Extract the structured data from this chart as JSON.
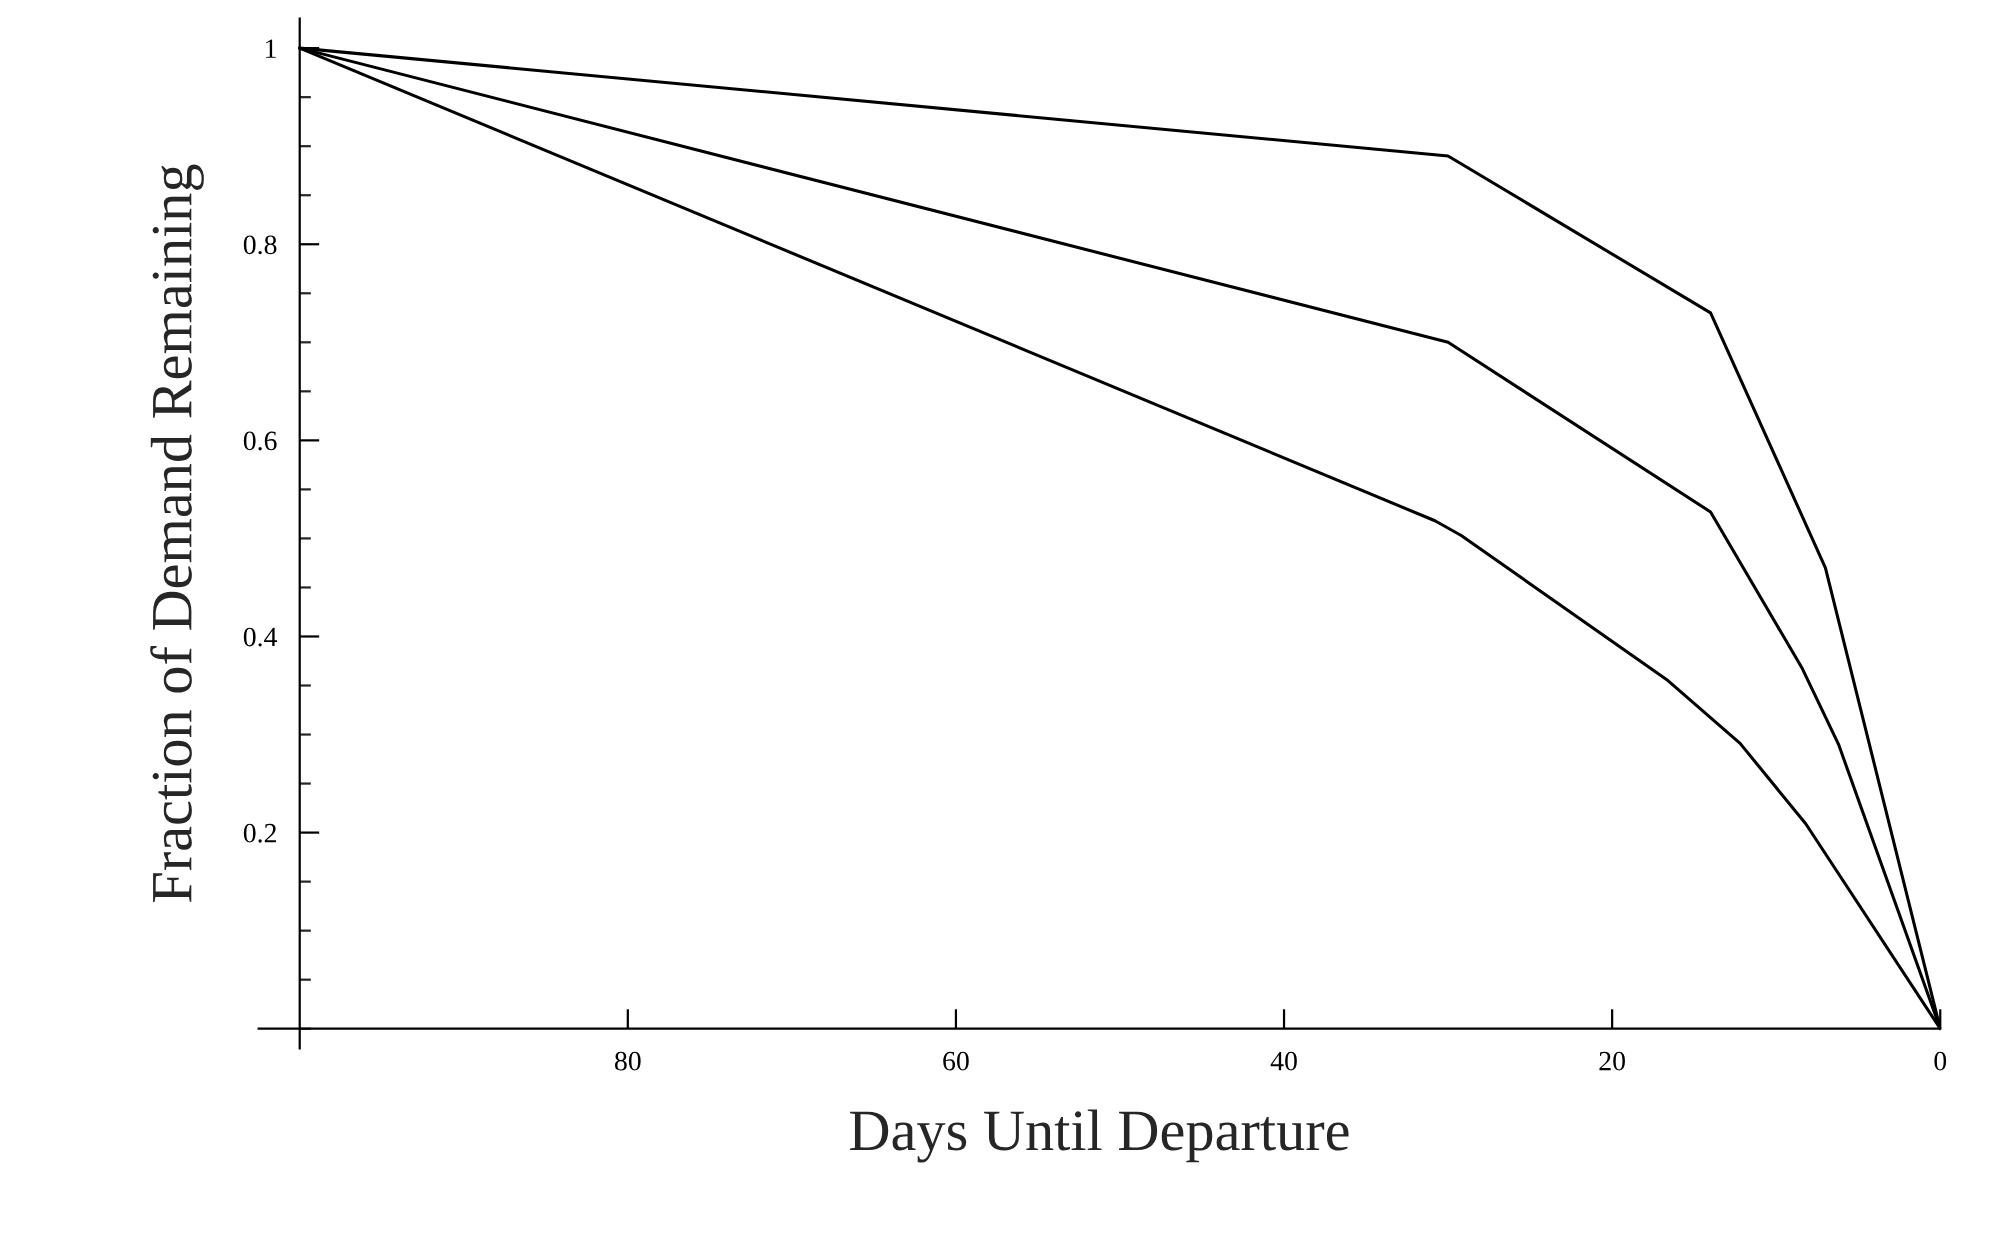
{
  "chart_data": {
    "type": "line",
    "xlabel": "Days Until Departure",
    "ylabel": "Fraction of Demand Remaining",
    "xlim": [
      102.5,
      0
    ],
    "xticks": [
      80,
      60,
      40,
      20,
      0
    ],
    "ylim": [
      -0.02,
      1.03
    ],
    "yticks": [
      0.2,
      0.4,
      0.6,
      0.8,
      {
        "value": 1,
        "label": "1"
      }
    ],
    "grid": false,
    "legend": false,
    "marker": "none",
    "line_style": "solid",
    "series": [
      {
        "color": "#000000",
        "x": [
          100,
          30,
          14,
          7,
          0
        ],
        "values": [
          1,
          0.89,
          0.73,
          0.47,
          0
        ]
      },
      {
        "color": "#000000",
        "x": [
          100,
          30,
          14,
          8.4,
          6.2,
          0
        ],
        "values": [
          1,
          0.7,
          0.527,
          0.367,
          0.29,
          0
        ]
      },
      {
        "color": "#000000",
        "x": [
          100,
          30.8,
          29.2,
          16.6,
          12.2,
          8.2,
          0
        ],
        "values": [
          1,
          0.518,
          0.503,
          0.355,
          0.291,
          0.209,
          0
        ]
      }
    ]
  }
}
